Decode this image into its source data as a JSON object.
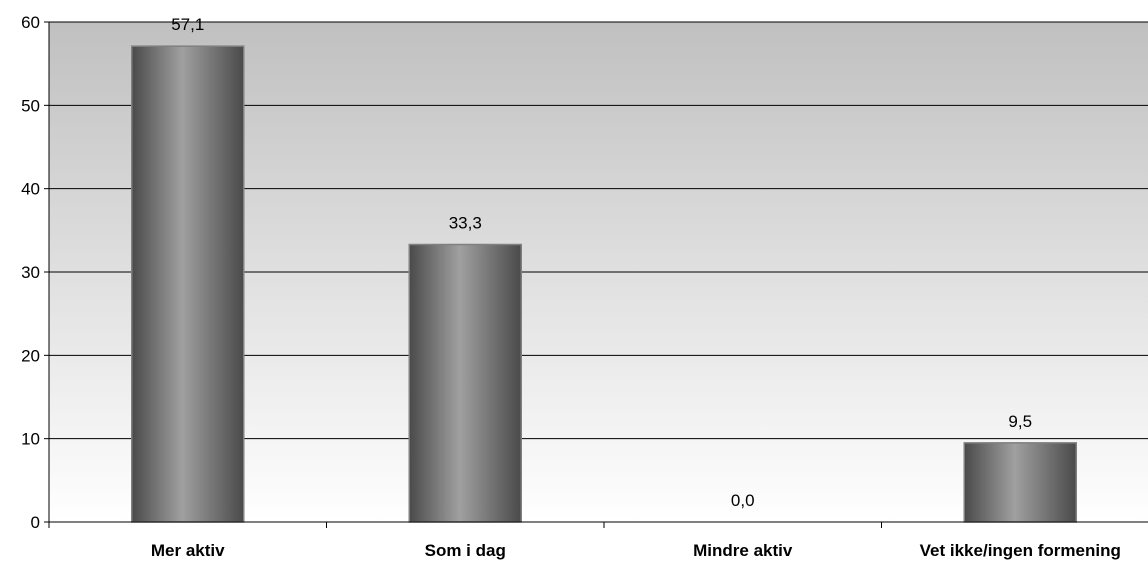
{
  "chart_data": {
    "type": "bar",
    "title": "",
    "xlabel": "",
    "ylabel": "",
    "categories": [
      "Mer aktiv",
      "Som i dag",
      "Mindre aktiv",
      "Vet ikke/ingen formening"
    ],
    "values": [
      57.1,
      33.3,
      0.0,
      9.5
    ],
    "data_labels": [
      "57,1",
      "33,3",
      "0,0",
      "9,5"
    ],
    "ylim": [
      0,
      60
    ],
    "yticks": [
      0,
      10,
      20,
      30,
      40,
      50,
      60
    ],
    "ytick_labels": [
      "0",
      "10",
      "20",
      "30",
      "40",
      "50",
      "60"
    ],
    "grid": true,
    "legend": "none",
    "colors": {
      "plot_bg_top": "#c0c0c0",
      "plot_bg_bottom": "#ffffff",
      "bar_dark": "#4a4a4a",
      "bar_light": "#a0a0a0",
      "gridline": "#000000"
    }
  }
}
